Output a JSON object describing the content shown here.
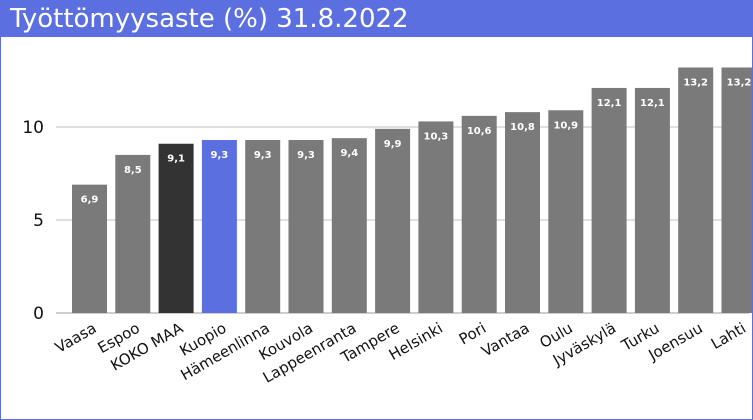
{
  "chart_data": {
    "type": "bar",
    "title": "Työttömyysaste (%) 31.8.2022",
    "xlabel": "",
    "ylabel": "",
    "categories": [
      "Vaasa",
      "Espoo",
      "KOKO MAA",
      "Kuopio",
      "Hämeenlinna",
      "Kouvola",
      "Lappeenranta",
      "Tampere",
      "Helsinki",
      "Pori",
      "Vantaa",
      "Oulu",
      "Jyväskylä",
      "Turku",
      "Joensuu",
      "Lahti"
    ],
    "values": [
      6.9,
      8.5,
      9.1,
      9.3,
      9.3,
      9.3,
      9.4,
      9.9,
      10.3,
      10.6,
      10.8,
      10.9,
      12.1,
      12.1,
      13.2,
      13.2
    ],
    "data_labels": [
      "6,9",
      "8,5",
      "9,1",
      "9,3",
      "9,3",
      "9,3",
      "9,4",
      "9,9",
      "10,3",
      "10,6",
      "10,8",
      "10,9",
      "12,1",
      "12,1",
      "13,2",
      "13,2"
    ],
    "yticks": [
      0,
      5,
      10
    ],
    "ytick_labels": [
      "0",
      "5",
      "10"
    ],
    "ylim": [
      0,
      14.5
    ],
    "grid": true,
    "legend": "none",
    "colors": {
      "default": "#7a7a7a",
      "highlight_national": "#333333",
      "highlight_city": "#5b6fe0",
      "title_bar": "#5b6fe0",
      "grid": "#d6d6d6"
    },
    "highlights": {
      "KOKO MAA": "highlight_national",
      "Kuopio": "highlight_city"
    }
  }
}
